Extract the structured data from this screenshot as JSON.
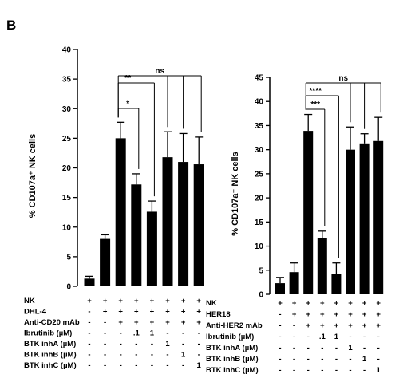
{
  "panel_label": "B",
  "chart_data": [
    {
      "type": "bar",
      "ylabel": "% CD107a⁺ NK cells",
      "ylim": [
        0,
        40
      ],
      "yticks": [
        0,
        5,
        10,
        15,
        20,
        25,
        30,
        35,
        40
      ],
      "values": [
        1.3,
        8.0,
        25.0,
        17.2,
        12.6,
        21.8,
        21.0,
        20.6
      ],
      "errors": [
        0.4,
        0.7,
        2.7,
        1.8,
        1.8,
        4.3,
        4.8,
        4.6
      ],
      "significance": [
        {
          "from": 2,
          "to": 3,
          "label": "*"
        },
        {
          "from": 2,
          "to": 4,
          "label": "**"
        },
        {
          "from": 2,
          "to": [
            5,
            6,
            7
          ],
          "label": "ns"
        }
      ],
      "conditions": [
        {
          "label": "NK",
          "marks": [
            "+",
            "+",
            "+",
            "+",
            "+",
            "+",
            "+",
            "+"
          ]
        },
        {
          "label": "DHL-4",
          "marks": [
            "-",
            "+",
            "+",
            "+",
            "+",
            "+",
            "+",
            "+"
          ]
        },
        {
          "label": "Anti-CD20 mAb",
          "marks": [
            "-",
            "-",
            "+",
            "+",
            "+",
            "+",
            "+",
            "+"
          ]
        },
        {
          "label": "Ibrutinib (µM)",
          "marks": [
            "-",
            "-",
            "-",
            ".1",
            "1",
            "-",
            "-",
            "-"
          ]
        },
        {
          "label": "BTK inhA (µM)",
          "marks": [
            "-",
            "-",
            "-",
            "-",
            "-",
            "1",
            "-",
            "-"
          ]
        },
        {
          "label": "BTK inhB (µM)",
          "marks": [
            "-",
            "-",
            "-",
            "-",
            "-",
            "-",
            "1",
            "-"
          ]
        },
        {
          "label": "BTK inhC (µM)",
          "marks": [
            "-",
            "-",
            "-",
            "-",
            "-",
            "-",
            "-",
            "1"
          ]
        }
      ]
    },
    {
      "type": "bar",
      "ylabel": "% CD107a⁺ NK cells",
      "ylim": [
        0,
        45
      ],
      "yticks": [
        0,
        5,
        10,
        15,
        20,
        25,
        30,
        35,
        40,
        45
      ],
      "values": [
        2.3,
        4.6,
        33.9,
        11.7,
        4.3,
        30.0,
        31.3,
        31.8
      ],
      "errors": [
        1.2,
        1.9,
        3.4,
        1.4,
        2.2,
        4.7,
        2.0,
        4.9
      ],
      "significance": [
        {
          "from": 2,
          "to": 3,
          "label": "***"
        },
        {
          "from": 2,
          "to": 4,
          "label": "****"
        },
        {
          "from": 2,
          "to": [
            5,
            6,
            7
          ],
          "label": "ns"
        }
      ],
      "conditions": [
        {
          "label": "NK",
          "marks": [
            "+",
            "+",
            "+",
            "+",
            "+",
            "+",
            "+",
            "+"
          ]
        },
        {
          "label": "HER18",
          "marks": [
            "-",
            "+",
            "+",
            "+",
            "+",
            "+",
            "+",
            "+"
          ]
        },
        {
          "label": "Anti-HER2 mAb",
          "marks": [
            "-",
            "-",
            "+",
            "+",
            "+",
            "+",
            "+",
            "+"
          ]
        },
        {
          "label": "Ibrutinib (µM)",
          "marks": [
            "-",
            "-",
            "-",
            ".1",
            "1",
            "-",
            "-",
            "-"
          ]
        },
        {
          "label": "BTK inhA (µM)",
          "marks": [
            "-",
            "-",
            "-",
            "-",
            "-",
            "1",
            "-",
            "-"
          ]
        },
        {
          "label": "BTK inhB (µM)",
          "marks": [
            "-",
            "-",
            "-",
            "-",
            "-",
            "-",
            "1",
            "-"
          ]
        },
        {
          "label": "BTK inhC (µM)",
          "marks": [
            "-",
            "-",
            "-",
            "-",
            "-",
            "-",
            "-",
            "1"
          ]
        }
      ]
    }
  ]
}
